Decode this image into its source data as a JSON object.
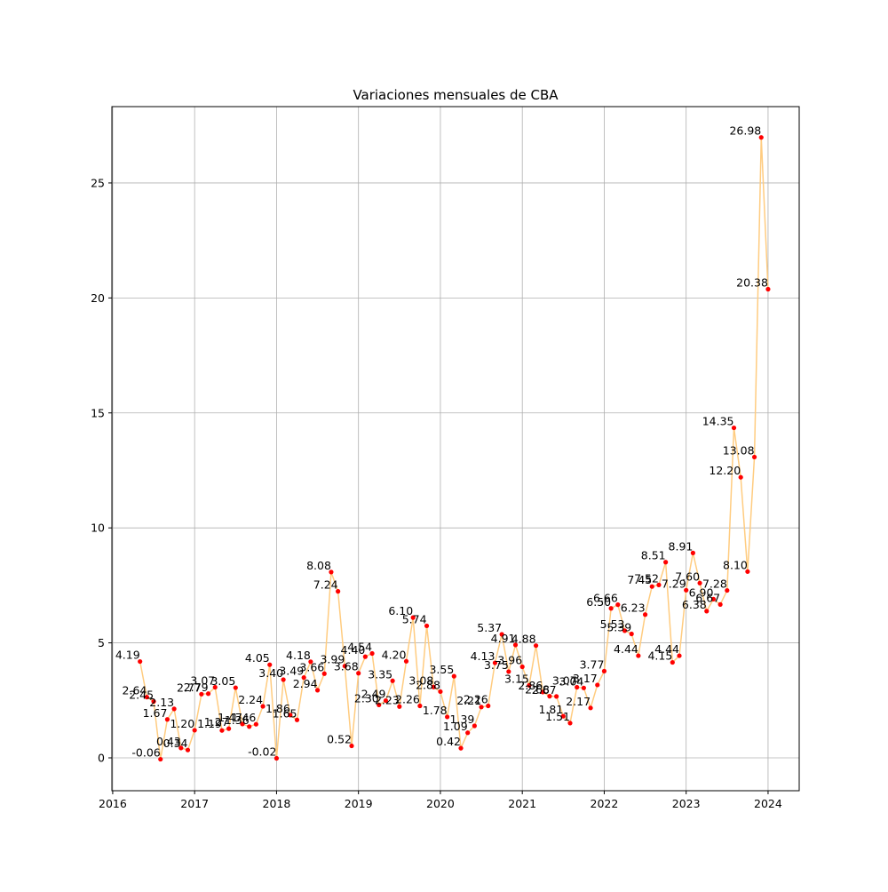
{
  "chart_data": {
    "type": "line",
    "title": "Variaciones mensuales de CBA",
    "x": [
      "2016-05",
      "2016-06",
      "2016-07",
      "2016-08",
      "2016-09",
      "2016-10",
      "2016-11",
      "2016-12",
      "2017-01",
      "2017-02",
      "2017-03",
      "2017-04",
      "2017-05",
      "2017-06",
      "2017-07",
      "2017-08",
      "2017-09",
      "2017-10",
      "2017-11",
      "2017-12",
      "2018-01",
      "2018-02",
      "2018-03",
      "2018-04",
      "2018-05",
      "2018-06",
      "2018-07",
      "2018-08",
      "2018-09",
      "2018-10",
      "2018-11",
      "2018-12",
      "2019-01",
      "2019-02",
      "2019-03",
      "2019-04",
      "2019-05",
      "2019-06",
      "2019-07",
      "2019-08",
      "2019-09",
      "2019-10",
      "2019-11",
      "2019-12",
      "2020-01",
      "2020-02",
      "2020-03",
      "2020-04",
      "2020-05",
      "2020-06",
      "2020-07",
      "2020-08",
      "2020-09",
      "2020-10",
      "2020-11",
      "2020-12",
      "2021-01",
      "2021-02",
      "2021-03",
      "2021-04",
      "2021-05",
      "2021-06",
      "2021-07",
      "2021-08",
      "2021-09",
      "2021-10",
      "2021-11",
      "2021-12",
      "2022-01",
      "2022-02",
      "2022-03",
      "2022-04",
      "2022-05",
      "2022-06",
      "2022-07",
      "2022-08",
      "2022-09",
      "2022-10",
      "2022-11",
      "2022-12",
      "2023-01",
      "2023-02",
      "2023-03",
      "2023-04",
      "2023-05",
      "2023-06",
      "2023-07",
      "2023-08",
      "2023-09",
      "2023-10",
      "2023-11",
      "2023-12",
      "2024-01"
    ],
    "values": [
      4.19,
      2.64,
      2.45,
      -0.06,
      1.67,
      2.13,
      0.43,
      0.34,
      1.2,
      2.77,
      2.79,
      3.07,
      1.19,
      1.27,
      3.05,
      1.47,
      1.36,
      1.46,
      2.24,
      4.05,
      -0.02,
      3.4,
      1.86,
      1.65,
      3.49,
      4.18,
      2.94,
      3.66,
      8.08,
      7.24,
      3.99,
      0.52,
      3.68,
      4.4,
      4.54,
      2.3,
      2.49,
      3.35,
      2.23,
      4.2,
      6.1,
      2.26,
      5.74,
      3.08,
      2.88,
      1.78,
      3.55,
      0.42,
      1.09,
      1.39,
      2.21,
      2.26,
      4.13,
      5.37,
      3.75,
      4.91,
      3.96,
      3.15,
      4.88,
      2.86,
      2.68,
      2.67,
      1.81,
      1.51,
      3.07,
      3.04,
      2.17,
      3.17,
      3.77,
      6.5,
      6.66,
      5.53,
      5.39,
      4.44,
      6.23,
      7.45,
      7.52,
      8.51,
      4.15,
      4.44,
      7.29,
      8.91,
      7.6,
      6.38,
      6.9,
      6.67,
      7.28,
      14.35,
      12.2,
      8.1,
      13.08,
      26.98,
      20.38
    ],
    "value_labels": [
      "4.19",
      "2.64",
      "2.45",
      "-0.06",
      "1.67",
      "2.13",
      "0.43",
      "0.34",
      "1.20",
      "2.77",
      "2.79",
      "3.07",
      "1.19",
      "1.27",
      "3.05",
      "1.47",
      "1.36",
      "1.46",
      "2.24",
      "4.05",
      "-0.02",
      "3.40",
      "1.86",
      "1.65",
      "3.49",
      "4.18",
      "2.94",
      "3.66",
      "8.08",
      "7.24",
      "3.99",
      "0.52",
      "3.68",
      "4.40",
      "4.54",
      "2.30",
      "2.49",
      "3.35",
      "2.23",
      "4.20",
      "6.10",
      "2.26",
      "5.74",
      "3.08",
      "2.88",
      "1.78",
      "3.55",
      "0.42",
      "1.09",
      "1.39",
      "2.21",
      "2.26",
      "4.13",
      "5.37",
      "3.75",
      "4.91",
      "3.96",
      "3.15",
      "4.88",
      "2.86",
      "2.68",
      "2.67",
      "1.81",
      "1.51",
      "3.07",
      "3.04",
      "2.17",
      "3.17",
      "3.77",
      "6.50",
      "6.66",
      "5.53",
      "5.39",
      "4.44",
      "6.23",
      "7.45",
      "7.52",
      "8.51",
      "4.15",
      "4.44",
      "7.29",
      "8.91",
      "7.60",
      "6.38",
      "6.90",
      "6.67",
      "7.28",
      "14.35",
      "12.20",
      "8.10",
      "13.08",
      "26.98",
      "20.38"
    ],
    "line_color": "#ffcc80",
    "marker_color": "#ff0000",
    "xlim": [
      2015.99,
      2024.38
    ],
    "xticks": [
      2016,
      2017,
      2018,
      2019,
      2020,
      2021,
      2022,
      2023,
      2024
    ],
    "ylim": [
      -1.43,
      28.32
    ],
    "yticks": [
      0,
      5,
      10,
      15,
      20,
      25
    ],
    "grid": true
  }
}
